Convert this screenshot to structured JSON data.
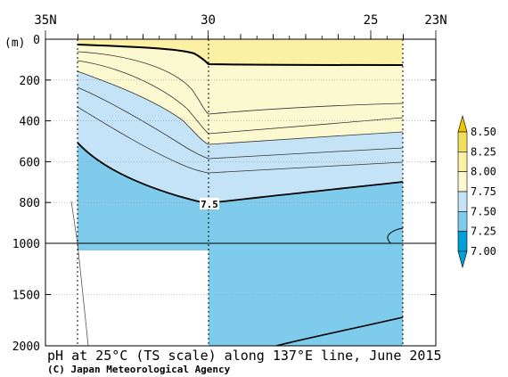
{
  "chart_data": {
    "type": "heatmap",
    "title": "pH at 25°C (TS scale) along 137°E line, June 2015",
    "credit": "(C) Japan Meteorological Agency",
    "x_axis": {
      "ticks": [
        35,
        30,
        25,
        23
      ],
      "tick_labels": [
        "35N",
        "30",
        "25",
        "23N"
      ],
      "range": [
        35,
        23
      ]
    },
    "y_axis": {
      "unit_label": "(m)",
      "upper_range": [
        0,
        1000
      ],
      "lower_range": [
        1000,
        2000
      ],
      "ticks": [
        0,
        200,
        400,
        600,
        800,
        1000,
        1500,
        2000
      ],
      "tick_labels": [
        "0",
        "200",
        "400",
        "600",
        "800",
        "1000",
        "1500",
        "2000"
      ],
      "grid": true
    },
    "colorbar": {
      "levels": [
        7.0,
        7.25,
        7.5,
        7.75,
        8.0,
        8.25,
        8.5
      ],
      "tick_labels": [
        "7.00",
        "7.25",
        "7.50",
        "7.75",
        "8.00",
        "8.25",
        "8.50"
      ],
      "colors": [
        "#00a0d8",
        "#7fcbeb",
        "#c4e3f6",
        "#fcf8d0",
        "#fbf1a4",
        "#f1e05e",
        "#e8c800"
      ],
      "extend": "both"
    },
    "contour_label": "7.5",
    "station_lat_min": 34,
    "station_lat_max": 23.9
  }
}
